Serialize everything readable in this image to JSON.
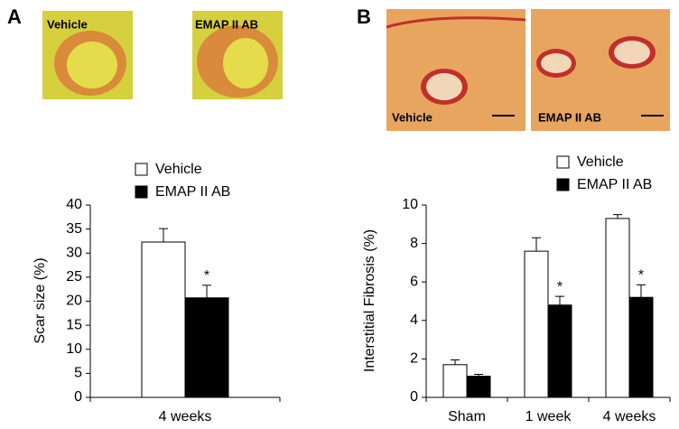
{
  "panels": [
    {
      "label": "A",
      "images": [
        {
          "caption": "Vehicle"
        },
        {
          "caption": "EMAP II AB"
        }
      ]
    },
    {
      "label": "B",
      "images": [
        {
          "caption": "Vehicle"
        },
        {
          "caption": "EMAP II AB"
        }
      ]
    }
  ],
  "chart_data": [
    {
      "type": "bar",
      "y_label": "Scar size (%)",
      "categories": [
        "4 weeks"
      ],
      "series": [
        {
          "name": "Vehicle",
          "color": "#ffffff",
          "values": [
            32.3
          ],
          "errors": [
            2.8
          ]
        },
        {
          "name": "EMAP II AB",
          "color": "#000000",
          "values": [
            20.7
          ],
          "errors": [
            2.6
          ],
          "significance": [
            "*"
          ]
        }
      ],
      "ylim": [
        0,
        40
      ],
      "yticks": [
        0,
        5,
        10,
        15,
        20,
        25,
        30,
        35,
        40
      ]
    },
    {
      "type": "bar",
      "y_label": "Interstitial Fibrosis (%)",
      "categories": [
        "Sham",
        "1 week",
        "4 weeks"
      ],
      "series": [
        {
          "name": "Vehicle",
          "color": "#ffffff",
          "values": [
            1.7,
            7.6,
            9.3
          ],
          "errors": [
            0.25,
            0.7,
            0.2
          ]
        },
        {
          "name": "EMAP II AB",
          "color": "#000000",
          "values": [
            1.1,
            4.8,
            5.2
          ],
          "errors": [
            0.1,
            0.45,
            0.65
          ],
          "significance": [
            null,
            "*",
            "*"
          ]
        }
      ],
      "ylim": [
        0,
        10
      ],
      "yticks": [
        0,
        2,
        4,
        6,
        8,
        10
      ]
    }
  ]
}
